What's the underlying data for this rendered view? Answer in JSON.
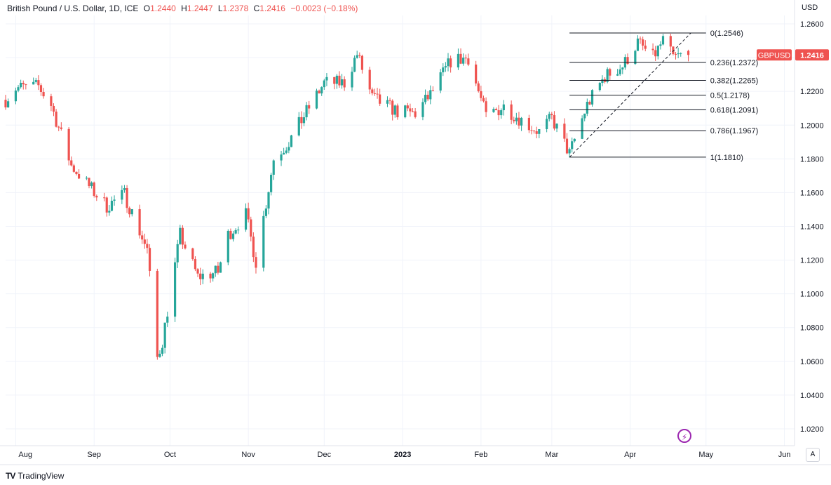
{
  "legend": {
    "symbol": "British Pound / U.S. Dollar, 1D, ICE",
    "open_label": "O",
    "open": "1.2440",
    "high_label": "H",
    "high": "1.2447",
    "low_label": "L",
    "low": "1.2378",
    "close_label": "C",
    "close": "1.2416",
    "change": "−0.0023 (−0.18%)"
  },
  "currency": "USD",
  "price_tag": {
    "label": "GBPUSD",
    "value": "1.2416"
  },
  "footer": {
    "brand": "TradingView",
    "logo": "TV"
  },
  "auto_button": "A",
  "colors": {
    "up": "#26a69a",
    "down": "#ef5350",
    "grid": "#f0f3fa",
    "text": "#131722"
  },
  "chart_data": {
    "type": "candlestick",
    "y_axis": {
      "range": [
        1.01,
        1.265
      ],
      "ticks": [
        1.02,
        1.04,
        1.06,
        1.08,
        1.1,
        1.12,
        1.14,
        1.16,
        1.18,
        1.2,
        1.22,
        1.24,
        1.26
      ],
      "tick_labels": [
        "1.0200",
        "1.0400",
        "1.0600",
        "1.0800",
        "1.1000",
        "1.1200",
        "1.1400",
        "1.1600",
        "1.1800",
        "1.2000",
        "1.2200",
        "1.2400",
        "1.2600"
      ]
    },
    "x_axis": {
      "labels": [
        "Aug",
        "Sep",
        "Oct",
        "Nov",
        "Dec",
        "2023",
        "Feb",
        "Mar",
        "Apr",
        "May",
        "Jun"
      ],
      "dates": [
        "2022-08-01",
        "2022-09-01",
        "2022-10-01",
        "2022-11-01",
        "2022-12-01",
        "2023-01-01",
        "2023-02-01",
        "2023-03-01",
        "2023-04-01",
        "2023-05-01",
        "2023-06-01"
      ],
      "range": [
        "2022-07-28",
        "2023-06-05"
      ]
    },
    "grid": true,
    "anchors": [
      [
        "2022-07-28",
        1.215
      ],
      [
        "2022-08-01",
        1.222
      ],
      [
        "2022-08-10",
        1.223
      ],
      [
        "2022-08-15",
        1.212
      ],
      [
        "2022-08-23",
        1.176
      ],
      [
        "2022-08-31",
        1.162
      ],
      [
        "2022-09-06",
        1.152
      ],
      [
        "2022-09-13",
        1.159
      ],
      [
        "2022-09-22",
        1.126
      ],
      [
        "2022-09-26",
        1.062
      ],
      [
        "2022-09-28",
        1.072
      ],
      [
        "2022-10-05",
        1.135
      ],
      [
        "2022-10-12",
        1.11
      ],
      [
        "2022-10-20",
        1.113
      ],
      [
        "2022-10-24",
        1.135
      ],
      [
        "2022-10-31",
        1.147
      ],
      [
        "2022-11-04",
        1.119
      ],
      [
        "2022-11-11",
        1.18
      ],
      [
        "2022-11-17",
        1.19
      ],
      [
        "2022-11-24",
        1.208
      ],
      [
        "2022-12-01",
        1.225
      ],
      [
        "2022-12-09",
        1.225
      ],
      [
        "2022-12-14",
        1.242
      ],
      [
        "2022-12-20",
        1.216
      ],
      [
        "2022-12-30",
        1.208
      ],
      [
        "2023-01-06",
        1.207
      ],
      [
        "2023-01-12",
        1.218
      ],
      [
        "2023-01-20",
        1.238
      ],
      [
        "2023-01-27",
        1.24
      ],
      [
        "2023-02-03",
        1.205
      ],
      [
        "2023-02-10",
        1.211
      ],
      [
        "2023-02-17",
        1.203
      ],
      [
        "2023-02-24",
        1.196
      ],
      [
        "2023-03-01",
        1.204
      ],
      [
        "2023-03-08",
        1.183
      ],
      [
        "2023-03-15",
        1.212
      ],
      [
        "2023-03-22",
        1.229
      ],
      [
        "2023-03-29",
        1.235
      ],
      [
        "2023-04-04",
        1.249
      ],
      [
        "2023-04-10",
        1.24
      ],
      [
        "2023-04-14",
        1.25
      ],
      [
        "2023-04-18",
        1.24
      ],
      [
        "2023-04-21",
        1.241
      ],
      [
        "2023-04-24",
        1.2416
      ]
    ],
    "last_candle": {
      "open": 1.244,
      "high": 1.2447,
      "low": 1.2378,
      "close": 1.2416
    },
    "fibonacci": {
      "start": {
        "date": "2023-03-08",
        "price": 1.181
      },
      "end": {
        "date": "2023-04-25",
        "price": 1.2546
      },
      "line_end": "2023-05-01",
      "levels": [
        {
          "ratio": "0",
          "price": "1.2546",
          "value": 1.2546
        },
        {
          "ratio": "0.236",
          "price": "1.2372",
          "value": 1.2372
        },
        {
          "ratio": "0.382",
          "price": "1.2265",
          "value": 1.2265
        },
        {
          "ratio": "0.5",
          "price": "1.2178",
          "value": 1.2178
        },
        {
          "ratio": "0.618",
          "price": "1.2091",
          "value": 1.2091
        },
        {
          "ratio": "0.786",
          "price": "1.1967",
          "value": 1.1967
        },
        {
          "ratio": "1",
          "price": "1.1810",
          "value": 1.181
        }
      ]
    }
  }
}
